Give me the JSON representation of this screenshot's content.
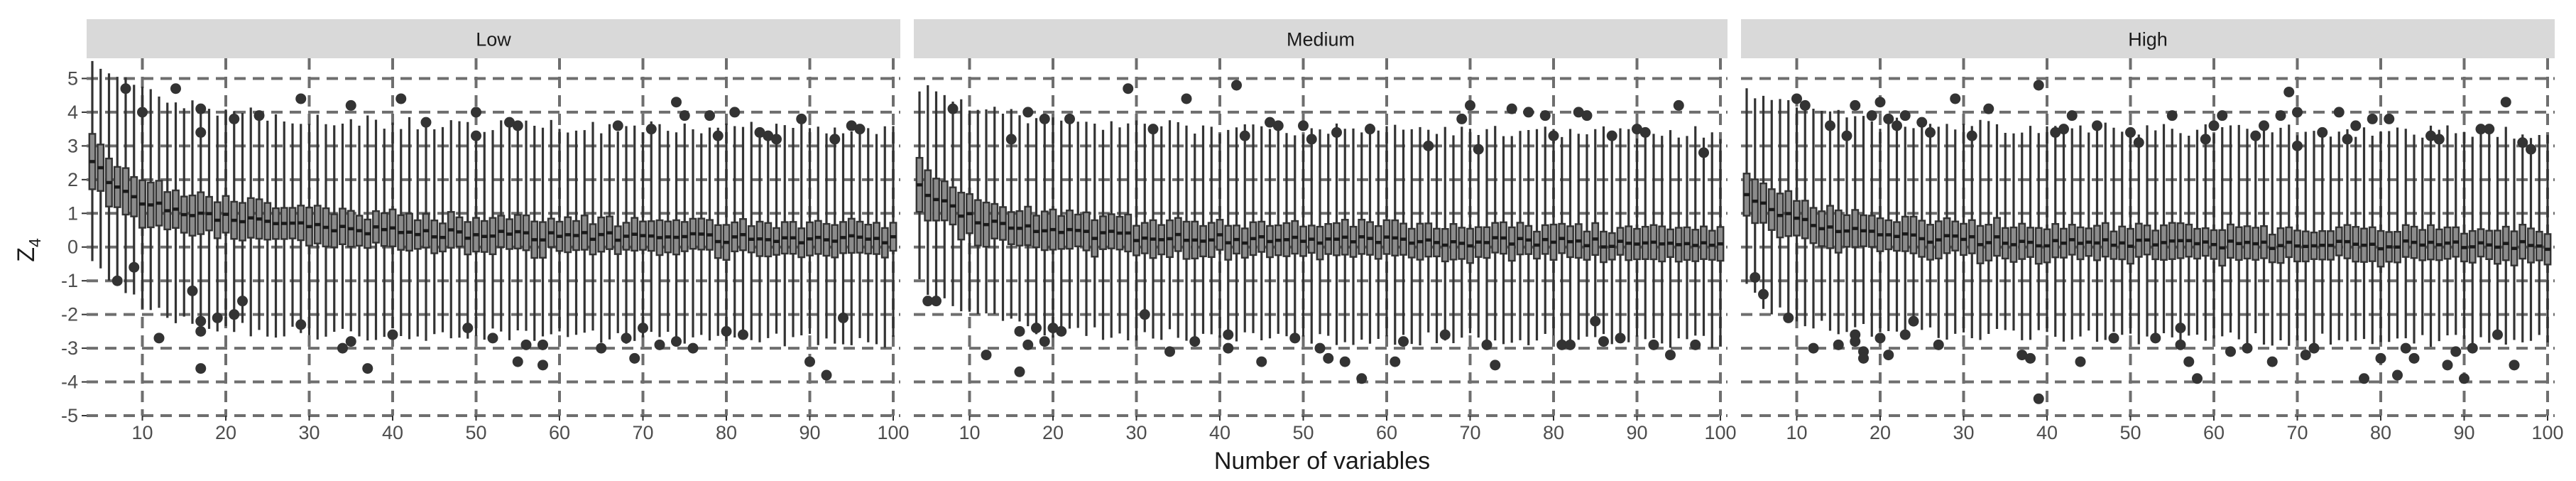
{
  "chart_data": {
    "type": "boxplot",
    "facet_variable_levels": [
      "Low",
      "Medium",
      "High"
    ],
    "xlabel": "Number of variables",
    "ylabel_main": "Z",
    "ylabel_sub": "4",
    "x_range": [
      4,
      100
    ],
    "ylim": [
      -5,
      5.6
    ],
    "x_ticks": [
      10,
      20,
      30,
      40,
      50,
      60,
      70,
      80,
      90,
      100
    ],
    "y_ticks": [
      -5,
      -4,
      -3,
      -2,
      -1,
      0,
      1,
      2,
      3,
      4,
      5
    ],
    "grid": true,
    "box_color": "#8c8c8c",
    "line_color": "#333333",
    "strip_color": "#d9d9d9",
    "approximate_profiles": [
      {
        "panel": "Low",
        "x": [
          4,
          6,
          10,
          15,
          20,
          30,
          50,
          100
        ],
        "median": [
          2.6,
          2.0,
          1.4,
          1.0,
          0.85,
          0.6,
          0.35,
          0.2
        ],
        "iqr": [
          1.5,
          1.4,
          1.3,
          1.2,
          1.1,
          1.0,
          0.95,
          0.9
        ],
        "whisker_low": [
          -0.4,
          -1.0,
          -1.7,
          -2.2,
          -2.4,
          -2.6,
          -2.6,
          -2.8
        ],
        "whisker_high": [
          5.6,
          5.2,
          4.7,
          4.3,
          4.0,
          3.8,
          3.6,
          3.5
        ]
      },
      {
        "panel": "Medium",
        "x": [
          4,
          6,
          10,
          15,
          20,
          30,
          50,
          100
        ],
        "median": [
          1.9,
          1.4,
          0.9,
          0.6,
          0.45,
          0.3,
          0.2,
          0.1
        ],
        "iqr": [
          1.4,
          1.3,
          1.2,
          1.1,
          1.05,
          1.0,
          0.95,
          0.9
        ],
        "whisker_low": [
          -1.0,
          -1.6,
          -2.0,
          -2.3,
          -2.5,
          -2.6,
          -2.7,
          -2.8
        ],
        "whisker_high": [
          4.8,
          4.6,
          4.2,
          3.9,
          3.7,
          3.6,
          3.5,
          3.4
        ]
      },
      {
        "panel": "High",
        "x": [
          4,
          6,
          10,
          15,
          20,
          30,
          50,
          100
        ],
        "median": [
          1.6,
          1.2,
          0.8,
          0.5,
          0.35,
          0.2,
          0.1,
          0.05
        ],
        "iqr": [
          1.4,
          1.3,
          1.2,
          1.1,
          1.0,
          1.0,
          0.95,
          0.9
        ],
        "whisker_low": [
          -1.2,
          -1.7,
          -2.1,
          -2.4,
          -2.5,
          -2.6,
          -2.7,
          -2.8
        ],
        "whisker_high": [
          4.6,
          4.4,
          4.1,
          3.9,
          3.7,
          3.6,
          3.5,
          3.4
        ]
      }
    ],
    "outliers": [
      {
        "panel": "Low",
        "points": [
          [
            7,
            -1.0
          ],
          [
            8,
            4.7
          ],
          [
            9,
            -0.6
          ],
          [
            10,
            4.0
          ],
          [
            12,
            -2.7
          ],
          [
            14,
            4.7
          ],
          [
            16,
            -1.3
          ],
          [
            17,
            4.1
          ],
          [
            17,
            3.4
          ],
          [
            17,
            -2.2
          ],
          [
            17,
            -2.5
          ],
          [
            17,
            -3.6
          ],
          [
            19,
            -2.1
          ],
          [
            21,
            -2.0
          ],
          [
            22,
            -1.6
          ],
          [
            21,
            3.8
          ],
          [
            24,
            3.9
          ],
          [
            29,
            4.4
          ],
          [
            29,
            -2.3
          ],
          [
            34,
            -3.0
          ],
          [
            35,
            -2.8
          ],
          [
            35,
            4.2
          ],
          [
            37,
            -3.6
          ],
          [
            40,
            -2.6
          ],
          [
            41,
            4.4
          ],
          [
            44,
            3.7
          ],
          [
            49,
            -2.4
          ],
          [
            50,
            4.0
          ],
          [
            50,
            3.3
          ],
          [
            52,
            -2.7
          ],
          [
            54,
            3.7
          ],
          [
            55,
            3.6
          ],
          [
            55,
            -3.4
          ],
          [
            56,
            -2.9
          ],
          [
            58,
            -2.9
          ],
          [
            58,
            -3.5
          ],
          [
            65,
            -3.0
          ],
          [
            67,
            3.6
          ],
          [
            68,
            -2.7
          ],
          [
            69,
            -3.3
          ],
          [
            70,
            -2.4
          ],
          [
            71,
            3.5
          ],
          [
            72,
            -2.9
          ],
          [
            74,
            4.3
          ],
          [
            74,
            -2.8
          ],
          [
            75,
            3.9
          ],
          [
            76,
            -3.0
          ],
          [
            78,
            3.9
          ],
          [
            79,
            3.3
          ],
          [
            80,
            -2.5
          ],
          [
            81,
            4.0
          ],
          [
            82,
            -2.6
          ],
          [
            84,
            3.4
          ],
          [
            85,
            3.3
          ],
          [
            86,
            3.2
          ],
          [
            89,
            3.8
          ],
          [
            90,
            -3.4
          ],
          [
            92,
            -3.8
          ],
          [
            93,
            3.2
          ],
          [
            94,
            -2.1
          ],
          [
            95,
            3.6
          ],
          [
            96,
            3.5
          ]
        ]
      },
      {
        "panel": "Medium",
        "points": [
          [
            5,
            -1.6
          ],
          [
            6,
            -1.6
          ],
          [
            8,
            4.1
          ],
          [
            12,
            -3.2
          ],
          [
            15,
            3.2
          ],
          [
            16,
            -2.5
          ],
          [
            16,
            -3.7
          ],
          [
            17,
            4.0
          ],
          [
            17,
            -2.9
          ],
          [
            18,
            -2.4
          ],
          [
            19,
            3.8
          ],
          [
            19,
            -2.8
          ],
          [
            20,
            -2.4
          ],
          [
            21,
            -2.5
          ],
          [
            22,
            3.8
          ],
          [
            29,
            4.7
          ],
          [
            31,
            -2.0
          ],
          [
            32,
            3.5
          ],
          [
            34,
            -3.1
          ],
          [
            36,
            4.4
          ],
          [
            37,
            -2.8
          ],
          [
            41,
            -2.6
          ],
          [
            41,
            -3.0
          ],
          [
            42,
            4.8
          ],
          [
            43,
            3.3
          ],
          [
            45,
            -3.4
          ],
          [
            46,
            3.7
          ],
          [
            47,
            3.6
          ],
          [
            49,
            -2.7
          ],
          [
            50,
            3.6
          ],
          [
            51,
            3.2
          ],
          [
            52,
            -3.0
          ],
          [
            53,
            -3.3
          ],
          [
            54,
            3.4
          ],
          [
            55,
            -3.4
          ],
          [
            57,
            -3.9
          ],
          [
            58,
            3.5
          ],
          [
            61,
            -3.4
          ],
          [
            62,
            -2.8
          ],
          [
            65,
            3.0
          ],
          [
            67,
            -2.6
          ],
          [
            69,
            3.8
          ],
          [
            70,
            4.2
          ],
          [
            71,
            2.9
          ],
          [
            72,
            -2.9
          ],
          [
            73,
            -3.5
          ],
          [
            75,
            4.1
          ],
          [
            77,
            4.0
          ],
          [
            79,
            3.9
          ],
          [
            80,
            3.3
          ],
          [
            81,
            -2.9
          ],
          [
            82,
            -2.9
          ],
          [
            83,
            4.0
          ],
          [
            84,
            3.9
          ],
          [
            85,
            -2.2
          ],
          [
            86,
            -2.8
          ],
          [
            87,
            3.3
          ],
          [
            88,
            -2.7
          ],
          [
            90,
            3.5
          ],
          [
            91,
            3.4
          ],
          [
            92,
            -2.9
          ],
          [
            94,
            -3.2
          ],
          [
            95,
            4.2
          ],
          [
            97,
            -2.9
          ],
          [
            98,
            2.8
          ]
        ]
      },
      {
        "panel": "High",
        "points": [
          [
            5,
            -0.9
          ],
          [
            6,
            -1.4
          ],
          [
            9,
            -2.1
          ],
          [
            10,
            4.4
          ],
          [
            11,
            4.2
          ],
          [
            12,
            -3.0
          ],
          [
            14,
            3.6
          ],
          [
            15,
            -2.9
          ],
          [
            16,
            3.3
          ],
          [
            17,
            4.2
          ],
          [
            17,
            -2.6
          ],
          [
            17,
            -2.8
          ],
          [
            18,
            -3.1
          ],
          [
            18,
            -3.3
          ],
          [
            19,
            3.9
          ],
          [
            20,
            4.3
          ],
          [
            20,
            -2.7
          ],
          [
            21,
            3.8
          ],
          [
            21,
            -3.2
          ],
          [
            22,
            3.6
          ],
          [
            23,
            3.9
          ],
          [
            23,
            -2.6
          ],
          [
            24,
            -2.2
          ],
          [
            25,
            3.7
          ],
          [
            26,
            3.4
          ],
          [
            27,
            -2.9
          ],
          [
            29,
            4.4
          ],
          [
            31,
            3.3
          ],
          [
            33,
            4.1
          ],
          [
            37,
            -3.2
          ],
          [
            38,
            -3.3
          ],
          [
            39,
            4.8
          ],
          [
            39,
            -4.5
          ],
          [
            41,
            3.4
          ],
          [
            42,
            3.5
          ],
          [
            43,
            3.9
          ],
          [
            44,
            -3.4
          ],
          [
            46,
            3.6
          ],
          [
            48,
            -2.7
          ],
          [
            50,
            3.4
          ],
          [
            51,
            3.1
          ],
          [
            53,
            -2.7
          ],
          [
            55,
            3.9
          ],
          [
            56,
            -2.9
          ],
          [
            56,
            -2.4
          ],
          [
            57,
            -3.4
          ],
          [
            58,
            -3.9
          ],
          [
            59,
            3.2
          ],
          [
            60,
            3.6
          ],
          [
            61,
            3.9
          ],
          [
            62,
            -3.1
          ],
          [
            64,
            -3.0
          ],
          [
            65,
            3.3
          ],
          [
            66,
            3.6
          ],
          [
            67,
            -3.4
          ],
          [
            68,
            3.9
          ],
          [
            69,
            4.6
          ],
          [
            70,
            4.0
          ],
          [
            70,
            3.0
          ],
          [
            71,
            -3.2
          ],
          [
            72,
            -3.0
          ],
          [
            73,
            3.4
          ],
          [
            75,
            4.0
          ],
          [
            76,
            3.2
          ],
          [
            77,
            3.6
          ],
          [
            78,
            -3.9
          ],
          [
            79,
            3.8
          ],
          [
            80,
            -3.3
          ],
          [
            81,
            3.8
          ],
          [
            82,
            -3.8
          ],
          [
            83,
            -3.0
          ],
          [
            84,
            -3.3
          ],
          [
            86,
            3.3
          ],
          [
            87,
            3.2
          ],
          [
            88,
            -3.5
          ],
          [
            89,
            -3.1
          ],
          [
            90,
            -3.9
          ],
          [
            91,
            -3.0
          ],
          [
            92,
            3.5
          ],
          [
            93,
            3.5
          ],
          [
            94,
            -2.6
          ],
          [
            95,
            4.3
          ],
          [
            96,
            -3.5
          ],
          [
            97,
            3.1
          ],
          [
            98,
            2.9
          ]
        ]
      }
    ]
  }
}
